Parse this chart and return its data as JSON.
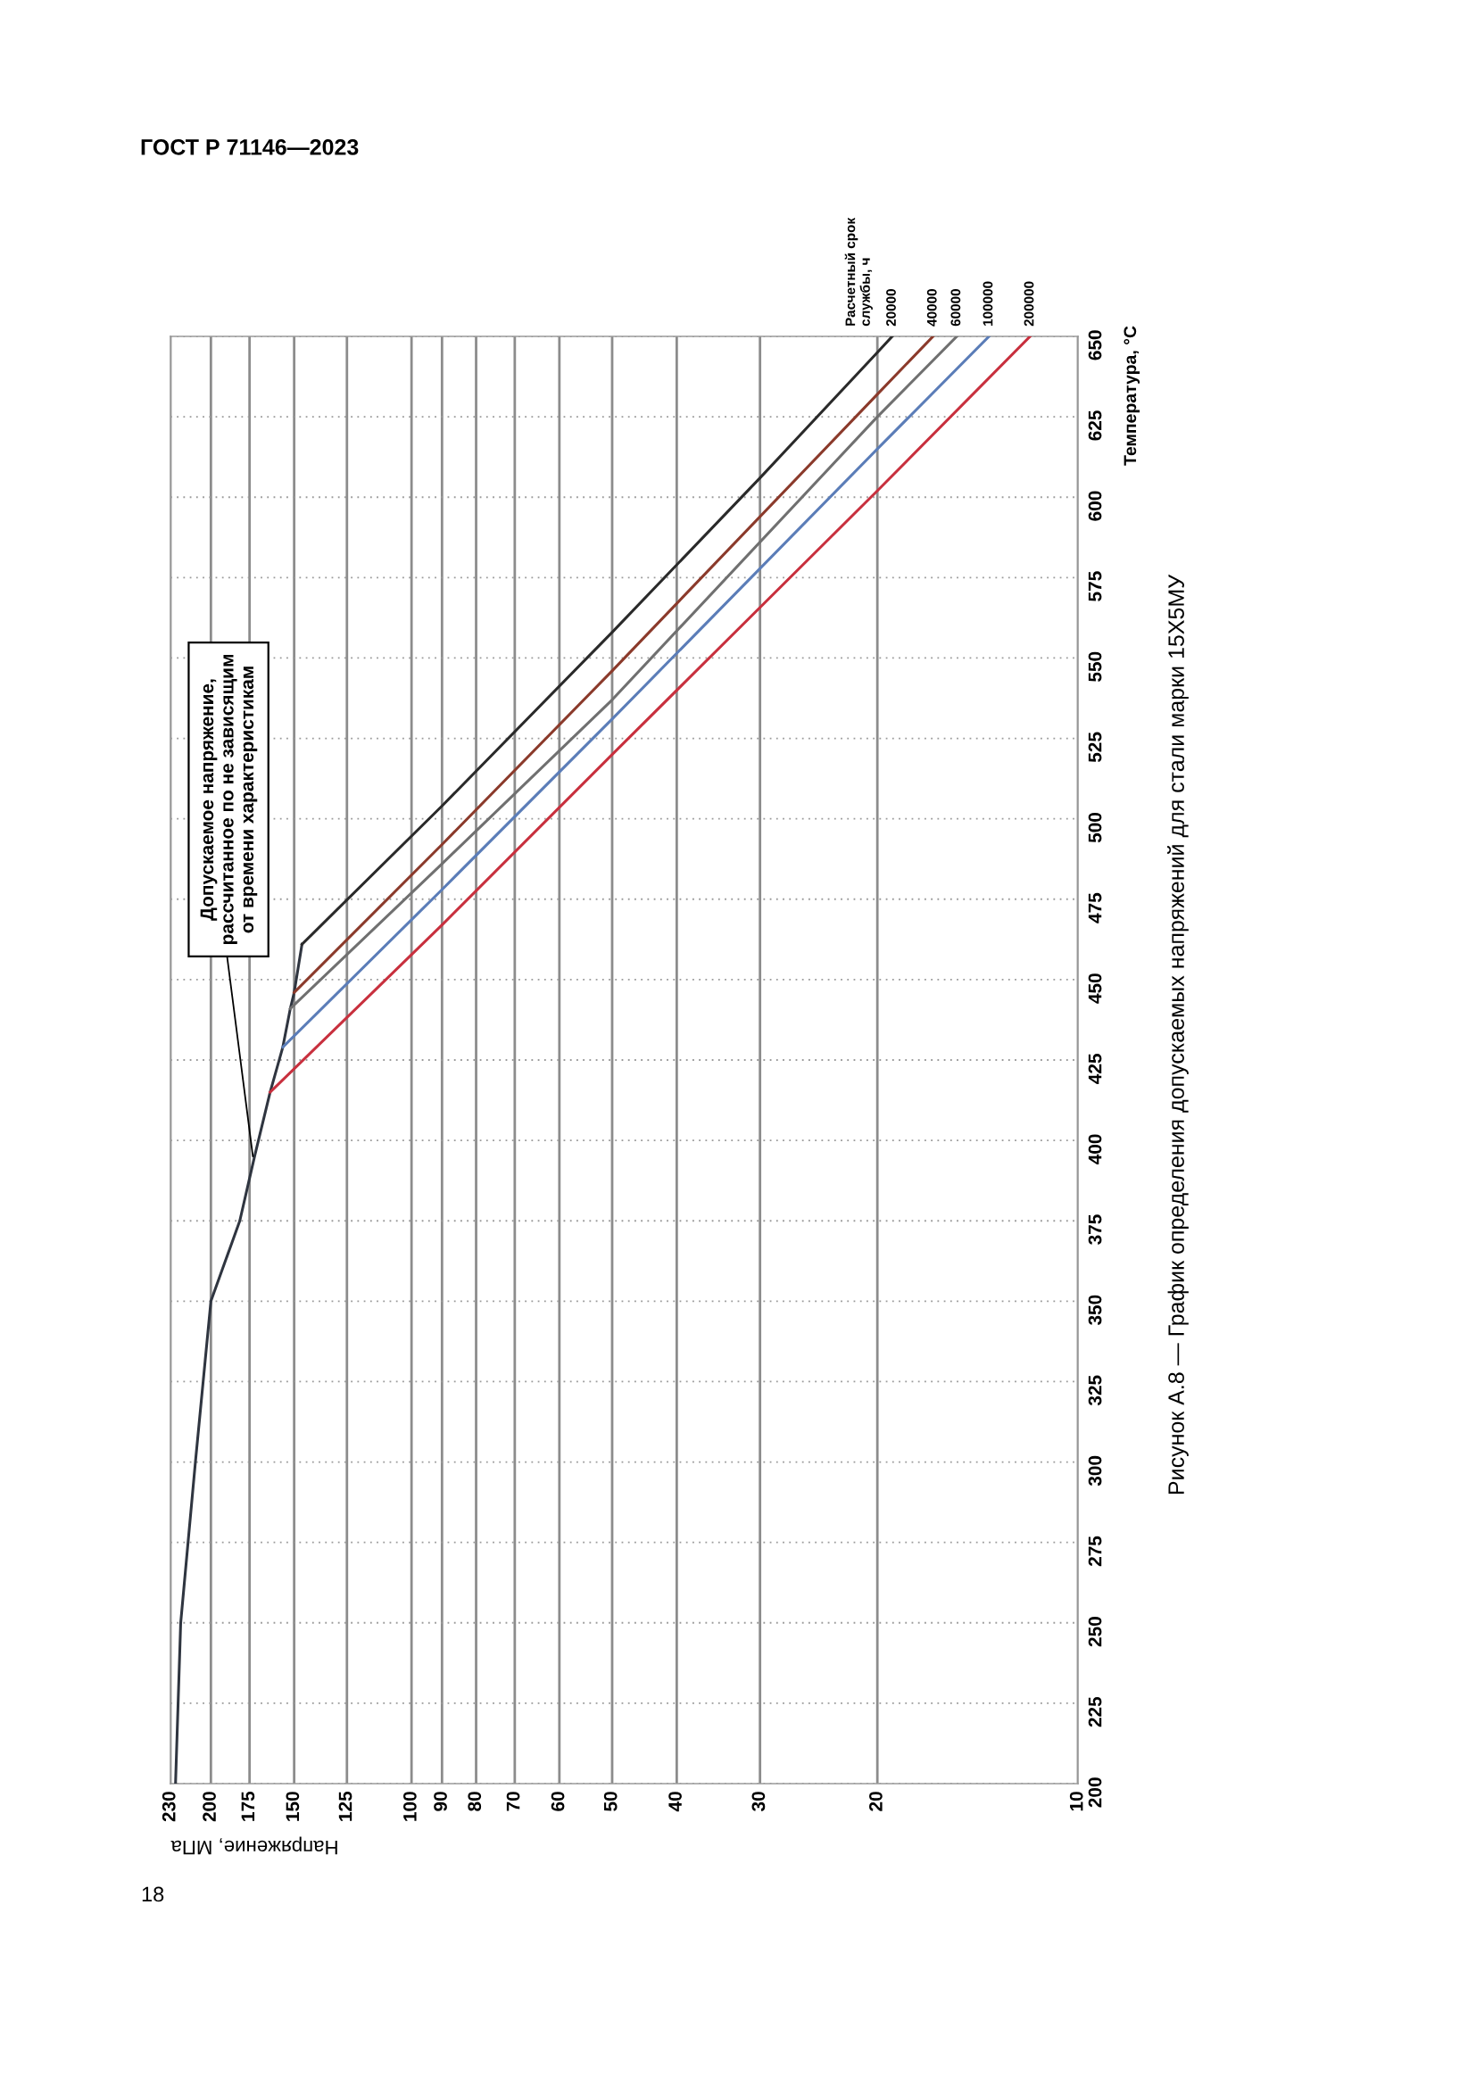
{
  "chart_data": {
    "type": "line",
    "title": "Рисунок А.8 — График определения допускаемых напряжений для стали марки 15Х5МУ",
    "xlabel": "Напряжение, МПа",
    "ylabel": "Температура, °C",
    "legend_title": "Расчетный срок\nслужбы, ч",
    "annotations": [
      "ГОСТ Р 71146—2023",
      "18",
      {
        "text": "Допускаемое напряжение,\nрассчитанное по не зависящим\nот времени характеристикам",
        "x": 173,
        "y": 395
      }
    ],
    "log": "x",
    "xlim": [
      230,
      10
    ],
    "xticks": [
      230,
      200,
      175,
      150,
      125,
      100,
      90,
      80,
      70,
      60,
      50,
      40,
      30,
      20,
      10
    ],
    "ylim": [
      200,
      650
    ],
    "yticks": [
      200,
      225,
      250,
      275,
      300,
      325,
      350,
      375,
      400,
      425,
      450,
      475,
      500,
      525,
      550,
      575,
      600,
      625,
      650
    ],
    "grid": true,
    "series": [
      {
        "color": "#2f3540",
        "x": [
          226,
          222,
          211,
          200,
          181,
          172,
          163,
          156,
          152,
          150,
          146
        ],
        "values": [
          200,
          250,
          300,
          350,
          375,
          395,
          415,
          429,
          441,
          446,
          461
        ]
      },
      {
        "name": "20000",
        "color": "#2a2a2a",
        "x": [
          146,
          90,
          50,
          30,
          20,
          19
        ],
        "values": [
          461,
          504,
          558,
          606,
          645,
          650
        ]
      },
      {
        "name": "40000",
        "color": "#8b3a2b",
        "x": [
          150,
          90,
          50,
          20,
          16.5
        ],
        "values": [
          446,
          492,
          546,
          632,
          650
        ]
      },
      {
        "name": "60000",
        "color": "#707070",
        "x": [
          152,
          90,
          50,
          20,
          15.2
        ],
        "values": [
          441,
          486,
          537,
          625,
          650
        ]
      },
      {
        "name": "100000",
        "color": "#5b7db8",
        "x": [
          156,
          90,
          50,
          20,
          13.6
        ],
        "values": [
          429,
          478,
          531,
          615,
          650
        ]
      },
      {
        "name": "200000",
        "color": "#c8303e",
        "x": [
          163,
          90,
          50,
          20,
          11.8
        ],
        "values": [
          415,
          467,
          520,
          602,
          650
        ]
      }
    ]
  }
}
